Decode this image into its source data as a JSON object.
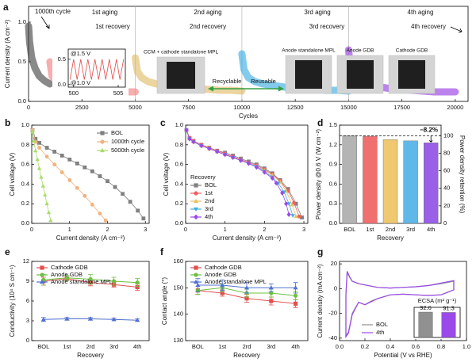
{
  "chart_data": [
    {
      "panel": "a",
      "type": "line",
      "xlabel": "Cycles",
      "ylabel": "Current density (A cm⁻²)",
      "xlim": [
        0,
        20600
      ],
      "xticks": [
        0,
        2500,
        5000,
        7500,
        10000,
        12500,
        15000,
        17500,
        20000
      ],
      "ylim": [
        0,
        1.2
      ],
      "yticks": [
        {
          "value": 0,
          "label": "0.0"
        },
        0.5,
        {
          "value": 1,
          "label": "1.0"
        }
      ],
      "series": [
        {
          "color": "#3a3a3a",
          "x": [
            0,
            50,
            150,
            300,
            500,
            750,
            1000
          ],
          "values": [
            0.95,
            0.75,
            0.55,
            0.42,
            0.32,
            0.26,
            0.22
          ]
        },
        {
          "color": "#f07878",
          "x": [
            1000,
            1100,
            1300,
            1600,
            2000,
            2500,
            3000,
            3500,
            4000,
            4500,
            5000
          ],
          "values": [
            0.5,
            0.32,
            0.24,
            0.2,
            0.17,
            0.15,
            0.14,
            0.13,
            0.13,
            0.12,
            0.12
          ]
        },
        {
          "color": "#e0b860",
          "x": [
            5000,
            5100,
            5300,
            5600,
            6000,
            6500,
            7000,
            7500,
            8000,
            8500,
            9000,
            9500,
            10000
          ],
          "values": [
            0.55,
            0.38,
            0.3,
            0.25,
            0.22,
            0.2,
            0.18,
            0.17,
            0.16,
            0.15,
            0.14,
            0.14,
            0.13
          ]
        },
        {
          "color": "#30a8e0",
          "x": [
            10000,
            10100,
            10300,
            10600,
            11000,
            11500,
            12000,
            12500,
            13000,
            13500,
            14000,
            14500,
            15000
          ],
          "values": [
            0.6,
            0.4,
            0.3,
            0.25,
            0.22,
            0.2,
            0.18,
            0.17,
            0.16,
            0.15,
            0.14,
            0.14,
            0.13
          ]
        },
        {
          "color": "#9030e0",
          "x": [
            15000,
            15100,
            15300,
            15600,
            16000,
            16500,
            17000,
            17500,
            18000,
            18500,
            19000,
            19500,
            20000
          ],
          "values": [
            0.65,
            0.38,
            0.28,
            0.23,
            0.2,
            0.18,
            0.16,
            0.15,
            0.14,
            0.13,
            0.12,
            0.12,
            0.12
          ]
        }
      ],
      "annotations": [
        {
          "text": "1000th cycle",
          "color": "#000000"
        },
        {
          "text": "1st aging",
          "color": "#e05a5a"
        },
        {
          "text": "1st recovery",
          "color": "#e05a5a"
        },
        {
          "text": "2nd aging",
          "color": "#c99a1e"
        },
        {
          "text": "2nd recovery",
          "color": "#c99a1e"
        },
        {
          "text": "3rd aging",
          "color": "#2a9ad8"
        },
        {
          "text": "3rd recovery",
          "color": "#2a9ad8"
        },
        {
          "text": "4th aging",
          "color": "#8a2be2"
        },
        {
          "text": "4th recovery",
          "color": "#8a2be2"
        }
      ],
      "inset": {
        "type": "line",
        "color": "#e04848",
        "xlim": [
          499.4,
          505.8
        ],
        "xticks": [
          500,
          505
        ],
        "ylim": [
          -0.05,
          0.7
        ],
        "yticks": [
          {
            "value": 0,
            "label": "0.0"
          },
          0.5
        ],
        "x": [
          499.6,
          500,
          500.4,
          500.8,
          501.2,
          501.6,
          502,
          502.4,
          502.8,
          503.2,
          503.6,
          504,
          504.4,
          504.8,
          505.2,
          505.6
        ],
        "values": [
          0.1,
          0.5,
          0.1,
          0.5,
          0.1,
          0.5,
          0.1,
          0.5,
          0.1,
          0.5,
          0.1,
          0.5,
          0.1,
          0.5,
          0.1,
          0.5
        ],
        "labels": [
          "@1.5 V",
          "@1.0 V"
        ]
      },
      "photos": [
        {
          "text": "CCM + cathode standalone MPL",
          "color": "#e02020"
        },
        {
          "text": "Anode standalone MPL",
          "color": "#2a6fb0"
        },
        {
          "text": "Anode GDB",
          "color": "#2a6fb0"
        },
        {
          "text": "Cathode GDB",
          "color": "#2a6fb0"
        }
      ],
      "arrow_labels": [
        "Recyclable",
        "Reusable"
      ],
      "arrow_color": "#30a040"
    },
    {
      "panel": "b",
      "type": "line",
      "xlabel": "Current density (A cm⁻²)",
      "ylabel": "Cell voltage (V)",
      "xlim": [
        0,
        3.1
      ],
      "xticks": [
        0,
        1,
        2,
        3
      ],
      "ylim": [
        0,
        1.0
      ],
      "yticks": [
        {
          "value": 0,
          "label": "0.0"
        },
        0.2,
        0.4,
        0.6,
        0.8,
        {
          "value": 1,
          "label": "1.0"
        }
      ],
      "legend": "upper right",
      "series": [
        {
          "name": "BOL",
          "color": "#808080",
          "marker": "square",
          "x": [
            0.02,
            0.1,
            0.2,
            0.4,
            0.6,
            0.8,
            1.0,
            1.2,
            1.4,
            1.6,
            1.8,
            2.0,
            2.2,
            2.4,
            2.6,
            2.8,
            2.95
          ],
          "values": [
            0.95,
            0.86,
            0.82,
            0.77,
            0.73,
            0.69,
            0.65,
            0.61,
            0.57,
            0.53,
            0.48,
            0.43,
            0.37,
            0.3,
            0.22,
            0.13,
            0.05
          ]
        },
        {
          "name": "1000th cycle",
          "color": "#f2b27c",
          "marker": "circle",
          "x": [
            0.02,
            0.1,
            0.2,
            0.4,
            0.6,
            0.8,
            1.0,
            1.2,
            1.4,
            1.6,
            1.8,
            1.95
          ],
          "values": [
            0.95,
            0.83,
            0.77,
            0.68,
            0.6,
            0.52,
            0.44,
            0.36,
            0.28,
            0.19,
            0.1,
            0.03
          ]
        },
        {
          "name": "5000th cycle",
          "color": "#a8dc68",
          "marker": "triangle",
          "x": [
            0.02,
            0.05,
            0.1,
            0.15,
            0.2,
            0.25,
            0.3,
            0.35,
            0.4,
            0.45,
            0.5
          ],
          "values": [
            0.93,
            0.84,
            0.74,
            0.65,
            0.56,
            0.47,
            0.38,
            0.29,
            0.2,
            0.11,
            0.03
          ]
        }
      ]
    },
    {
      "panel": "c",
      "type": "line",
      "xlabel": "Current density (A cm⁻²)",
      "ylabel": "Cell voltage (V)",
      "xlim": [
        0,
        3.1
      ],
      "xticks": [
        0,
        1,
        2,
        3
      ],
      "ylim": [
        0,
        1.0
      ],
      "yticks": [
        {
          "value": 0,
          "label": "0.0"
        },
        0.2,
        0.4,
        0.6,
        0.8,
        {
          "value": 1,
          "label": "1.0"
        }
      ],
      "legend": "lower left",
      "legend_title": "Recovery",
      "series": [
        {
          "name": "BOL",
          "color": "#808080",
          "marker": "square",
          "x": [
            0.02,
            0.1,
            0.2,
            0.4,
            0.6,
            0.8,
            1.0,
            1.2,
            1.4,
            1.6,
            1.8,
            2.0,
            2.2,
            2.4,
            2.6,
            2.8,
            2.95
          ],
          "values": [
            0.95,
            0.87,
            0.84,
            0.8,
            0.77,
            0.74,
            0.72,
            0.69,
            0.66,
            0.63,
            0.6,
            0.56,
            0.51,
            0.44,
            0.35,
            0.2,
            0.06
          ]
        },
        {
          "name": "1st",
          "color": "#f06060",
          "marker": "circle",
          "x": [
            0.02,
            0.1,
            0.2,
            0.4,
            0.6,
            0.8,
            1.0,
            1.2,
            1.4,
            1.6,
            1.8,
            2.0,
            2.2,
            2.4,
            2.6,
            2.75,
            2.88
          ],
          "values": [
            0.95,
            0.87,
            0.84,
            0.8,
            0.77,
            0.74,
            0.71,
            0.68,
            0.65,
            0.62,
            0.59,
            0.55,
            0.5,
            0.43,
            0.33,
            0.21,
            0.07
          ]
        },
        {
          "name": "2nd",
          "color": "#e8c060",
          "marker": "triangle",
          "x": [
            0.02,
            0.1,
            0.2,
            0.4,
            0.6,
            0.8,
            1.0,
            1.2,
            1.4,
            1.6,
            1.8,
            2.0,
            2.2,
            2.4,
            2.55,
            2.7,
            2.8
          ],
          "values": [
            0.95,
            0.86,
            0.83,
            0.79,
            0.76,
            0.73,
            0.7,
            0.67,
            0.64,
            0.61,
            0.58,
            0.54,
            0.49,
            0.42,
            0.33,
            0.19,
            0.07
          ]
        },
        {
          "name": "3rd",
          "color": "#40b0e0",
          "marker": "triangle-down",
          "x": [
            0.02,
            0.1,
            0.2,
            0.4,
            0.6,
            0.8,
            1.0,
            1.2,
            1.4,
            1.6,
            1.8,
            2.0,
            2.2,
            2.35,
            2.5,
            2.62,
            2.72
          ],
          "values": [
            0.95,
            0.86,
            0.83,
            0.79,
            0.76,
            0.73,
            0.7,
            0.67,
            0.64,
            0.61,
            0.58,
            0.53,
            0.47,
            0.41,
            0.32,
            0.2,
            0.08
          ]
        },
        {
          "name": "4th",
          "color": "#9a4ae8",
          "marker": "diamond",
          "x": [
            0.02,
            0.1,
            0.2,
            0.4,
            0.6,
            0.8,
            1.0,
            1.2,
            1.4,
            1.6,
            1.8,
            2.0,
            2.2,
            2.3,
            2.45,
            2.55,
            2.62
          ],
          "values": [
            0.95,
            0.86,
            0.83,
            0.79,
            0.76,
            0.73,
            0.7,
            0.67,
            0.64,
            0.61,
            0.57,
            0.52,
            0.46,
            0.41,
            0.31,
            0.2,
            0.09
          ]
        }
      ]
    },
    {
      "panel": "d",
      "type": "bar",
      "xlabel": "Recovery",
      "ylabel": "Power density @0.6 V (W cm⁻²)",
      "y2label": "Power density retention (%)",
      "categories": [
        "BOL",
        "1st",
        "2nd",
        "3rd",
        "4th"
      ],
      "values": [
        1.34,
        1.33,
        1.28,
        1.26,
        1.23
      ],
      "colors": [
        "#b4b4b4",
        "#f07070",
        "#f0c870",
        "#60b8e8",
        "#9a60e8"
      ],
      "ylim": [
        0,
        1.5
      ],
      "yticks": [
        {
          "value": 0,
          "label": "0.0"
        },
        0.3,
        0.6,
        0.9,
        1.2,
        1.5
      ],
      "y2lim": [
        0,
        112
      ],
      "y2ticks": [
        0,
        20,
        40,
        60,
        80,
        100
      ],
      "annotation": "−8.2%"
    },
    {
      "panel": "e",
      "type": "line",
      "xlabel": "Recovery",
      "ylabel": "Conductivity (10⁴ S cm⁻¹)",
      "categories": [
        "BOL",
        "1st",
        "2rd",
        "3rd",
        "4th"
      ],
      "ylim": [
        0,
        12
      ],
      "yticks": [
        0,
        3,
        6,
        9,
        12
      ],
      "legend": "upper left",
      "series": [
        {
          "name": "Cathode GDB",
          "color": "#e05050",
          "marker": "square",
          "values": [
            9.0,
            9.4,
            8.8,
            8.5,
            8.1
          ],
          "errors": [
            0.6,
            0.3,
            0.5,
            0.4,
            0.5
          ]
        },
        {
          "name": "Anode GDB",
          "color": "#6cc040",
          "marker": "circle",
          "values": [
            9.2,
            9.5,
            9.3,
            9.0,
            8.8
          ],
          "errors": [
            0.8,
            0.4,
            0.7,
            0.6,
            0.6
          ]
        },
        {
          "name": "Anode standalone MPL",
          "color": "#5070d0",
          "marker": "triangle",
          "values": [
            3.2,
            3.3,
            3.3,
            3.2,
            3.1
          ],
          "errors": [
            0.3,
            0.2,
            0.2,
            0.2,
            0.2
          ]
        }
      ]
    },
    {
      "panel": "f",
      "type": "line",
      "xlabel": "Recovery",
      "ylabel": "Contact angle (°)",
      "categories": [
        "BOL",
        "1st",
        "2rd",
        "3rd",
        "4th"
      ],
      "ylim": [
        130,
        160
      ],
      "yticks": [
        130,
        140,
        150,
        160
      ],
      "legend": "upper left",
      "series": [
        {
          "name": "Cathode GDB",
          "color": "#e05050",
          "marker": "square",
          "values": [
            149,
            148,
            146,
            145,
            144
          ],
          "errors": [
            1.5,
            1.2,
            1.5,
            1.5,
            1.5
          ]
        },
        {
          "name": "Anode GDB",
          "color": "#6cc040",
          "marker": "circle",
          "values": [
            149,
            150,
            148,
            148,
            147
          ],
          "errors": [
            1.5,
            1.5,
            1.5,
            1.5,
            1.5
          ]
        },
        {
          "name": "Anode standalone MPL",
          "color": "#5070d0",
          "marker": "triangle",
          "values": [
            151,
            151,
            150,
            150,
            150
          ],
          "errors": [
            2.5,
            2,
            2,
            1.5,
            2
          ]
        }
      ]
    },
    {
      "panel": "g",
      "type": "line",
      "xlabel": "Potential (V vs RHE)",
      "ylabel": "Current density (mA cm⁻²)",
      "xlim": [
        0,
        1.0
      ],
      "xticks": [
        {
          "value": 0,
          "label": "0.0"
        },
        0.2,
        0.4,
        0.6,
        0.8,
        {
          "value": 1,
          "label": "1.0"
        }
      ],
      "ylim": [
        -42,
        22
      ],
      "yticks": [
        -40,
        -20,
        0,
        20
      ],
      "legend": "lower left",
      "series": [
        {
          "name": "BOL",
          "color": "#909090",
          "x": [
            0.05,
            0.06,
            0.08,
            0.1,
            0.15,
            0.2,
            0.3,
            0.4,
            0.5,
            0.6,
            0.7,
            0.8,
            0.9,
            0.9,
            0.85,
            0.8,
            0.7,
            0.6,
            0.5,
            0.4,
            0.3,
            0.25,
            0.2,
            0.15,
            0.1,
            0.07,
            0.05,
            0.05
          ],
          "values": [
            -5,
            13,
            9,
            6,
            4,
            3,
            1,
            0.5,
            1,
            1.5,
            2.5,
            4,
            6,
            -1,
            -3,
            -5,
            -5.5,
            -5,
            -4.5,
            -5,
            -8,
            -10,
            -13,
            -11,
            -20,
            -35,
            -38,
            -5
          ]
        },
        {
          "name": "4th",
          "color": "#9a4ae8",
          "x": [
            0.05,
            0.06,
            0.08,
            0.1,
            0.15,
            0.2,
            0.3,
            0.4,
            0.5,
            0.6,
            0.7,
            0.8,
            0.9,
            0.9,
            0.85,
            0.8,
            0.7,
            0.6,
            0.5,
            0.4,
            0.3,
            0.25,
            0.2,
            0.15,
            0.1,
            0.07,
            0.05,
            0.05
          ],
          "values": [
            -5,
            14,
            9.5,
            6,
            4,
            3,
            1,
            0.5,
            1,
            1.5,
            2.5,
            4.5,
            6.5,
            -1,
            -3,
            -5,
            -5.5,
            -5,
            -4.5,
            -5,
            -8,
            -10.5,
            -13,
            -11,
            -21,
            -36,
            -39,
            -5
          ]
        }
      ],
      "inset": {
        "type": "bar",
        "title": "ECSA (m² g⁻¹)",
        "values": [
          92.6,
          91.3
        ],
        "colors": [
          "#909090",
          "#9a4ae8"
        ],
        "ylim": [
          0,
          110
        ]
      }
    }
  ]
}
